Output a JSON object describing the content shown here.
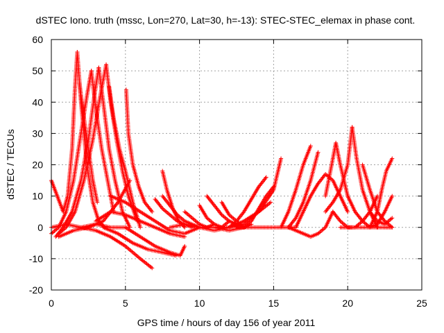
{
  "chart_data": {
    "type": "scatter",
    "title": "dSTEC Iono. truth (mssc, Lon=270, Lat=30, h=-13): STEC-STEC_elemax in phase cont.",
    "xlabel": "GPS time / hours of day 156 of year 2011",
    "ylabel": "dSTEC  / TECUs",
    "xlim": [
      0,
      25
    ],
    "ylim": [
      -20,
      60
    ],
    "xticks": [
      "0",
      "5",
      "10",
      "15",
      "20",
      "25"
    ],
    "yticks": [
      "-20",
      "-10",
      "0",
      "10",
      "20",
      "30",
      "40",
      "50",
      "60"
    ],
    "grid": true,
    "marker": "+",
    "color": "#ff0000",
    "series": [
      {
        "x": [
          0.0,
          0.4,
          0.8,
          1.1,
          1.4,
          1.6,
          1.75
        ],
        "y": [
          15,
          10,
          5,
          10,
          25,
          45,
          56
        ]
      },
      {
        "x": [
          1.75,
          2.0,
          2.4,
          2.8,
          3.2,
          3.6
        ],
        "y": [
          56,
          40,
          20,
          8,
          2,
          0
        ]
      },
      {
        "x": [
          1.9,
          2.2,
          2.5,
          2.8,
          3.1
        ],
        "y": [
          46,
          35,
          25,
          15,
          8
        ]
      },
      {
        "x": [
          0.0,
          0.5,
          1.0,
          1.5,
          2.0,
          2.4,
          2.7
        ],
        "y": [
          -2,
          0,
          5,
          15,
          30,
          42,
          50
        ]
      },
      {
        "x": [
          2.7,
          3.0,
          3.4,
          3.8,
          4.2
        ],
        "y": [
          50,
          38,
          25,
          15,
          5
        ]
      },
      {
        "x": [
          0.3,
          0.8,
          1.4,
          2.0,
          2.5,
          2.9,
          3.2
        ],
        "y": [
          -3,
          0,
          5,
          15,
          28,
          42,
          51
        ]
      },
      {
        "x": [
          3.2,
          3.5,
          3.9,
          4.3,
          4.8,
          5.3
        ],
        "y": [
          51,
          40,
          25,
          15,
          5,
          0
        ]
      },
      {
        "x": [
          0.5,
          1.0,
          1.6,
          2.2,
          2.8,
          3.3,
          3.7
        ],
        "y": [
          -2,
          0,
          5,
          15,
          28,
          42,
          52
        ]
      },
      {
        "x": [
          3.7,
          4.0,
          4.4,
          4.8,
          5.2,
          5.8
        ],
        "y": [
          52,
          40,
          28,
          18,
          10,
          2
        ]
      },
      {
        "x": [
          3.9,
          4.2,
          4.6,
          5.0,
          5.5,
          6.0
        ],
        "y": [
          45,
          35,
          25,
          18,
          8,
          0
        ]
      },
      {
        "x": [
          5.05,
          5.2,
          5.5,
          5.9,
          6.3,
          6.8
        ],
        "y": [
          44,
          30,
          20,
          13,
          8,
          5
        ]
      },
      {
        "x": [
          0.5,
          1.5,
          2.5,
          3.5,
          4.5,
          5.3
        ],
        "y": [
          -3,
          -1,
          0,
          2,
          8,
          15
        ]
      },
      {
        "x": [
          0.0,
          1.0,
          2.0,
          3.0,
          4.0,
          5.0
        ],
        "y": [
          0,
          1,
          0,
          1,
          0,
          0
        ]
      },
      {
        "x": [
          2.0,
          3.0,
          4.0,
          5.0,
          6.0,
          6.8
        ],
        "y": [
          0,
          -1,
          -3,
          -6,
          -10,
          -13
        ]
      },
      {
        "x": [
          3.5,
          4.5,
          5.5,
          6.5,
          7.5,
          8.4
        ],
        "y": [
          0,
          -2,
          -5,
          -7,
          -8,
          -9
        ]
      },
      {
        "x": [
          5.0,
          6.0,
          7.0,
          8.0,
          8.7,
          9.0
        ],
        "y": [
          0,
          -3,
          -6,
          -8,
          -9,
          -6
        ]
      },
      {
        "x": [
          3.0,
          4.0,
          5.0,
          6.0,
          7.0,
          8.0,
          9.0
        ],
        "y": [
          2,
          5,
          4,
          2,
          0,
          -2,
          -3
        ]
      },
      {
        "x": [
          4.0,
          5.0,
          6.0,
          7.0,
          8.0,
          9.0,
          10.0
        ],
        "y": [
          10,
          8,
          5,
          2,
          -1,
          -2,
          0
        ]
      },
      {
        "x": [
          7.5,
          7.8,
          8.2,
          8.6,
          9.0
        ],
        "y": [
          18,
          12,
          6,
          2,
          0
        ]
      },
      {
        "x": [
          7.0,
          7.5,
          8.0,
          8.5,
          9.0,
          9.5
        ],
        "y": [
          9,
          6,
          4,
          2,
          1,
          0
        ]
      },
      {
        "x": [
          7.5,
          8.0,
          8.5,
          9.0,
          9.5,
          10.0
        ],
        "y": [
          10,
          7,
          4,
          2,
          1,
          0
        ]
      },
      {
        "x": [
          8.0,
          9.0,
          10.0,
          11.0,
          12.0,
          13.0
        ],
        "y": [
          0,
          1,
          0,
          0,
          -1,
          0
        ]
      },
      {
        "x": [
          9.0,
          9.5,
          10.0,
          10.5,
          11.0
        ],
        "y": [
          5,
          3,
          1,
          0,
          1
        ]
      },
      {
        "x": [
          10.0,
          10.5,
          11.0,
          11.5,
          12.0
        ],
        "y": [
          7,
          3,
          1,
          0,
          2
        ]
      },
      {
        "x": [
          10.5,
          11.0,
          11.5,
          12.0,
          12.5,
          13.0
        ],
        "y": [
          10,
          7,
          4,
          2,
          1,
          0
        ]
      },
      {
        "x": [
          11.5,
          12.0,
          12.5,
          13.0,
          13.5
        ],
        "y": [
          8,
          4,
          2,
          0,
          1
        ]
      },
      {
        "x": [
          10.0,
          11.0,
          12.0,
          12.5,
          13.0,
          13.5,
          14.0,
          14.5
        ],
        "y": [
          0,
          -1,
          0,
          2,
          5,
          9,
          13,
          16
        ]
      },
      {
        "x": [
          11.0,
          12.0,
          13.0,
          14.0,
          14.8
        ],
        "y": [
          0,
          0,
          2,
          5,
          8
        ]
      },
      {
        "x": [
          12.0,
          13.0,
          14.0,
          15.0,
          15.5
        ],
        "y": [
          0,
          1,
          5,
          12,
          22
        ]
      },
      {
        "x": [
          13.0,
          13.5,
          14.0,
          14.5,
          15.0
        ],
        "y": [
          0,
          2,
          6,
          10,
          13
        ]
      },
      {
        "x": [
          12.5,
          13.5,
          14.5,
          15.5,
          16.5
        ],
        "y": [
          0,
          0,
          0,
          0,
          0
        ]
      },
      {
        "x": [
          15.5,
          16.0,
          16.5,
          17.0,
          17.5
        ],
        "y": [
          0,
          5,
          12,
          20,
          26
        ]
      },
      {
        "x": [
          16.0,
          16.5,
          17.0,
          17.5,
          18.0
        ],
        "y": [
          0,
          3,
          8,
          15,
          24
        ]
      },
      {
        "x": [
          16.0,
          16.5,
          17.0,
          17.5,
          18.0,
          18.5,
          19.0
        ],
        "y": [
          0,
          -1,
          -2,
          -3,
          -2,
          0,
          5
        ]
      },
      {
        "x": [
          16.5,
          17.0,
          17.5,
          18.0,
          18.5,
          19.0,
          19.5,
          20.0
        ],
        "y": [
          0,
          5,
          10,
          14,
          17,
          15,
          10,
          5
        ]
      },
      {
        "x": [
          18.5,
          19.0,
          19.2,
          19.5,
          20.0
        ],
        "y": [
          10,
          22,
          27,
          20,
          10
        ]
      },
      {
        "x": [
          18.5,
          19.0,
          19.5,
          20.0,
          20.3
        ],
        "y": [
          5,
          8,
          12,
          20,
          32
        ]
      },
      {
        "x": [
          20.3,
          20.6,
          21.0,
          21.5,
          22.0
        ],
        "y": [
          32,
          22,
          12,
          5,
          0
        ]
      },
      {
        "x": [
          19.0,
          19.5,
          20.0,
          20.5,
          21.0,
          21.5,
          22.0
        ],
        "y": [
          5,
          2,
          0,
          0,
          2,
          5,
          10
        ]
      },
      {
        "x": [
          20.0,
          20.5,
          21.0,
          21.5,
          22.0,
          22.5,
          23.0
        ],
        "y": [
          10,
          5,
          2,
          0,
          1,
          5,
          10
        ]
      },
      {
        "x": [
          21.5,
          22.0,
          22.3,
          22.6,
          23.0
        ],
        "y": [
          0,
          5,
          12,
          18,
          22
        ]
      },
      {
        "x": [
          21.0,
          21.5,
          22.0,
          22.5,
          23.0
        ],
        "y": [
          20,
          12,
          5,
          2,
          0
        ]
      },
      {
        "x": [
          19.5,
          20.5,
          21.5,
          22.5,
          23.0
        ],
        "y": [
          0,
          0,
          0,
          0,
          0
        ]
      },
      {
        "x": [
          21.5,
          22.0,
          22.5,
          23.0
        ],
        "y": [
          5,
          2,
          1,
          3
        ]
      }
    ]
  }
}
